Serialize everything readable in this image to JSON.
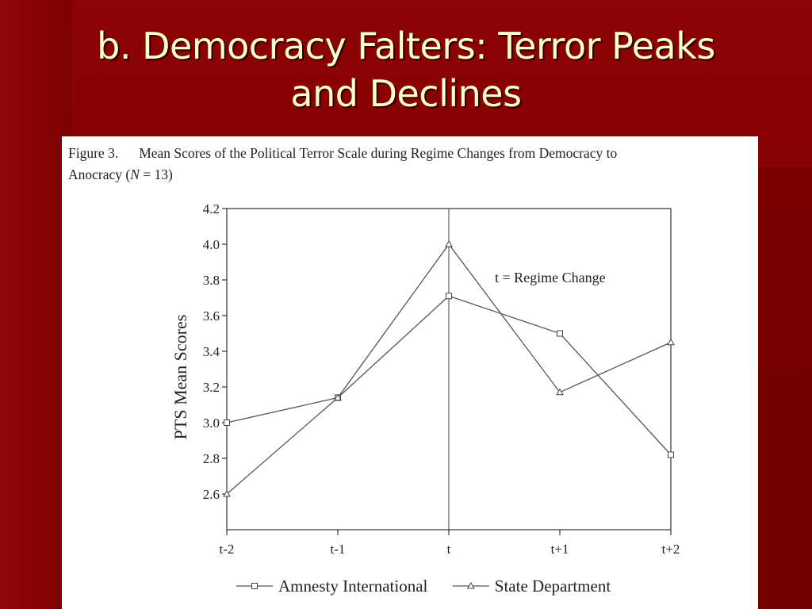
{
  "slide": {
    "title_line1": "b. Democracy Falters: Terror Peaks",
    "title_line2": "and Declines",
    "background_color": "#7a0000",
    "title_color": "#ffffcc"
  },
  "figure": {
    "label": "Figure 3.",
    "caption_line1": "Mean Scores of the Political Terror Scale during Regime Changes from Democracy to",
    "caption_line2_a": "Anocracy (",
    "caption_line2_n": "N",
    "caption_line2_b": " = 13)"
  },
  "chart_data": {
    "type": "line",
    "categories": [
      "t-2",
      "t-1",
      "t",
      "t+1",
      "t+2"
    ],
    "ylabel": "PTS Mean Scores",
    "ylim": [
      2.4,
      4.2
    ],
    "yticks": [
      2.6,
      2.8,
      3.0,
      3.2,
      3.4,
      3.6,
      3.8,
      4.0,
      4.2
    ],
    "ytick_labels": [
      "2.6",
      "2.8",
      "3.0",
      "3.2",
      "3.4",
      "3.6",
      "3.8",
      "4.0",
      "4.2"
    ],
    "grid": false,
    "legend_placement": "bottom",
    "annotation": {
      "text": "t = Regime Change",
      "at_category": "t"
    },
    "series": [
      {
        "name": "Amnesty International",
        "marker": "square",
        "values": [
          3.0,
          3.14,
          3.71,
          3.5,
          2.82
        ]
      },
      {
        "name": "State Department",
        "marker": "triangle",
        "values": [
          2.6,
          3.14,
          4.0,
          3.17,
          3.45
        ]
      }
    ]
  }
}
